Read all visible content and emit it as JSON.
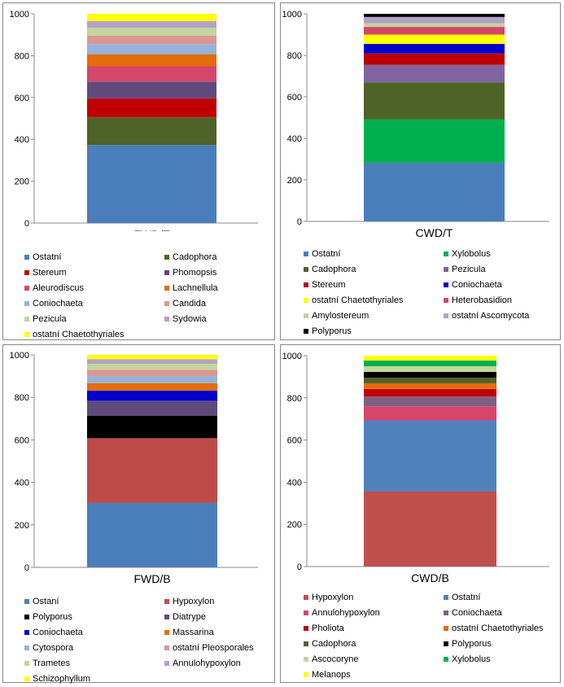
{
  "chart_data": [
    {
      "type": "bar",
      "stacked": true,
      "xlabel": "FWD/T",
      "ylim": [
        0,
        1000
      ],
      "yticks": [
        0,
        200,
        400,
        600,
        800,
        1000
      ],
      "grid": false,
      "legend_position": "bottom",
      "series": [
        {
          "name": "Ostatní",
          "value": 373,
          "color": "#4a7ebb"
        },
        {
          "name": "Cadophora",
          "value": 132,
          "color": "#4f6228"
        },
        {
          "name": "Stereum",
          "value": 91,
          "color": "#c00000"
        },
        {
          "name": "Phomopsis",
          "value": 80,
          "color": "#604a7b"
        },
        {
          "name": "Aleurodiscus",
          "value": 73,
          "color": "#d6456a"
        },
        {
          "name": "Lachnellula",
          "value": 58,
          "color": "#e46c0a"
        },
        {
          "name": "Coniochaeta",
          "value": 48,
          "color": "#95b3d7"
        },
        {
          "name": "Candida",
          "value": 40,
          "color": "#da9694"
        },
        {
          "name": "Pezicula",
          "value": 38,
          "color": "#c3d69b"
        },
        {
          "name": "Sydowia",
          "value": 32,
          "color": "#b2a1c7"
        },
        {
          "name": "ostatní Chaetothyriales",
          "value": 35,
          "color": "#ffff00"
        }
      ]
    },
    {
      "type": "bar",
      "stacked": true,
      "xlabel": "CWD/T",
      "ylim": [
        0,
        1000
      ],
      "yticks": [
        0,
        200,
        400,
        600,
        800,
        1000
      ],
      "grid": false,
      "legend_position": "bottom",
      "series": [
        {
          "name": "Ostatní",
          "value": 282,
          "color": "#4a7ebb"
        },
        {
          "name": "Xylobolus",
          "value": 210,
          "color": "#00b050"
        },
        {
          "name": "Cadophora",
          "value": 178,
          "color": "#4f6228"
        },
        {
          "name": "Pezicula",
          "value": 84,
          "color": "#8064a2"
        },
        {
          "name": "Stereum",
          "value": 55,
          "color": "#c00000"
        },
        {
          "name": "Coniochaeta",
          "value": 46,
          "color": "#0000cc"
        },
        {
          "name": "ostatní Chaetothyriales",
          "value": 45,
          "color": "#ffff00"
        },
        {
          "name": "Heterobasidion",
          "value": 37,
          "color": "#d6456a"
        },
        {
          "name": "Amylostereum",
          "value": 18,
          "color": "#c3d69b"
        },
        {
          "name": "ostatní Ascomycota",
          "value": 30,
          "color": "#b2a1c7"
        },
        {
          "name": "Polyporus",
          "value": 15,
          "color": "#000000"
        }
      ]
    },
    {
      "type": "bar",
      "stacked": true,
      "xlabel": "FWD/B",
      "ylim": [
        0,
        1000
      ],
      "yticks": [
        0,
        200,
        400,
        600,
        800,
        1000
      ],
      "grid": false,
      "legend_position": "bottom",
      "series": [
        {
          "name": "Ostaní",
          "value": 303,
          "color": "#4a7ebb"
        },
        {
          "name": "Hypoxylon",
          "value": 305,
          "color": "#be4b48"
        },
        {
          "name": "Polyporus",
          "value": 106,
          "color": "#000000"
        },
        {
          "name": "Diatrype",
          "value": 70,
          "color": "#604a7b"
        },
        {
          "name": "Coniochaeta",
          "value": 48,
          "color": "#0000cc"
        },
        {
          "name": "Massarina",
          "value": 35,
          "color": "#e46c0a"
        },
        {
          "name": "Cytospora",
          "value": 33,
          "color": "#95b3d7"
        },
        {
          "name": "ostatní Pleosporales",
          "value": 30,
          "color": "#da9694"
        },
        {
          "name": "Trametes",
          "value": 28,
          "color": "#c3d69b"
        },
        {
          "name": "Annulohypoxylon",
          "value": 22,
          "color": "#b2a1c7"
        },
        {
          "name": "Schizophyllum",
          "value": 20,
          "color": "#ffff00"
        }
      ]
    },
    {
      "type": "bar",
      "stacked": true,
      "xlabel": "CWD/B",
      "ylim": [
        0,
        1000
      ],
      "yticks": [
        0,
        200,
        400,
        600,
        800,
        1000
      ],
      "grid": false,
      "legend_position": "bottom",
      "series": [
        {
          "name": "Hypoxylon",
          "value": 357,
          "color": "#c0504d"
        },
        {
          "name": "Ostatní",
          "value": 336,
          "color": "#4f81bd"
        },
        {
          "name": "Annulohypoxylon",
          "value": 67,
          "color": "#d6456a"
        },
        {
          "name": "Coniochaeta",
          "value": 46,
          "color": "#7f6084"
        },
        {
          "name": "Pholiota",
          "value": 36,
          "color": "#c00000"
        },
        {
          "name": "ostatní Chaetothyriales",
          "value": 27,
          "color": "#e46c0a"
        },
        {
          "name": "Cadophora",
          "value": 27,
          "color": "#4f6228"
        },
        {
          "name": "Polyporus",
          "value": 27,
          "color": "#000000"
        },
        {
          "name": "Ascocoryne",
          "value": 27,
          "color": "#c3d69b"
        },
        {
          "name": "Xylobolus",
          "value": 27,
          "color": "#00b050"
        },
        {
          "name": "Melanops",
          "value": 23,
          "color": "#ffff00"
        }
      ]
    }
  ]
}
